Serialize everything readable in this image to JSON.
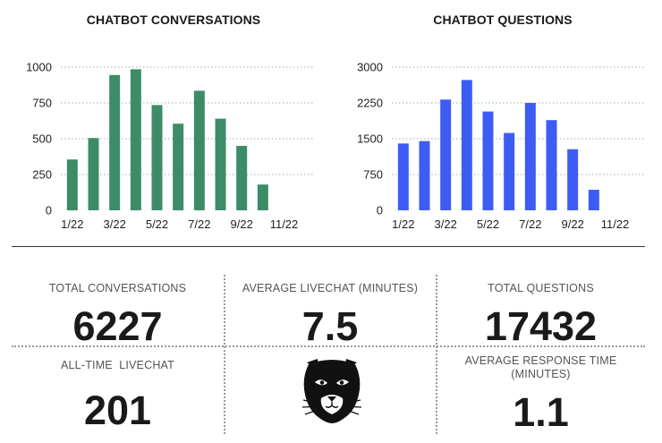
{
  "charts": [
    {
      "title": "CHATBOT CONVERSATIONS",
      "chart_data": {
        "type": "bar",
        "categories": [
          "1/22",
          "2/22",
          "3/22",
          "4/22",
          "5/22",
          "6/22",
          "7/22",
          "8/22",
          "9/22",
          "10/22",
          "11/22",
          "12/22"
        ],
        "values": [
          355,
          505,
          945,
          985,
          735,
          605,
          835,
          640,
          450,
          180,
          0,
          0
        ],
        "xtick_labels": [
          "1/22",
          "3/22",
          "5/22",
          "7/22",
          "9/22",
          "11/22"
        ],
        "yticks": [
          0,
          250,
          500,
          750,
          1000
        ],
        "ylim": [
          0,
          1000
        ],
        "grid": "horizontal-dotted",
        "color": "#3d8c68"
      }
    },
    {
      "title": "CHATBOT QUESTIONS",
      "chart_data": {
        "type": "bar",
        "categories": [
          "1/22",
          "2/22",
          "3/22",
          "4/22",
          "5/22",
          "6/22",
          "7/22",
          "8/22",
          "9/22",
          "10/22",
          "11/22",
          "12/22"
        ],
        "values": [
          1400,
          1450,
          2320,
          2730,
          2070,
          1620,
          2250,
          1890,
          1280,
          430,
          0,
          0
        ],
        "xtick_labels": [
          "1/22",
          "3/22",
          "5/22",
          "7/22",
          "9/22",
          "11/22"
        ],
        "yticks": [
          0,
          750,
          1500,
          2250,
          3000
        ],
        "ylim": [
          0,
          3000
        ],
        "grid": "horizontal-dotted",
        "color": "#3d5cf5"
      }
    }
  ],
  "stats": {
    "total_conversations": {
      "label": "TOTAL CONVERSATIONS",
      "value": "6227"
    },
    "average_livechat": {
      "label": "AVERAGE LIVECHAT (MINUTES)",
      "value": "7.5"
    },
    "total_questions": {
      "label": "TOTAL QUESTIONS",
      "value": "17432"
    },
    "all_time_livechat": {
      "label": "ALL-TIME  LIVECHAT",
      "value": "201"
    },
    "average_response_time": {
      "label_line1": "AVERAGE RESPONSE TIME",
      "label_line2": "(MINUTES)",
      "value": "1.1"
    }
  },
  "mascot_icon": "panther-head-icon"
}
